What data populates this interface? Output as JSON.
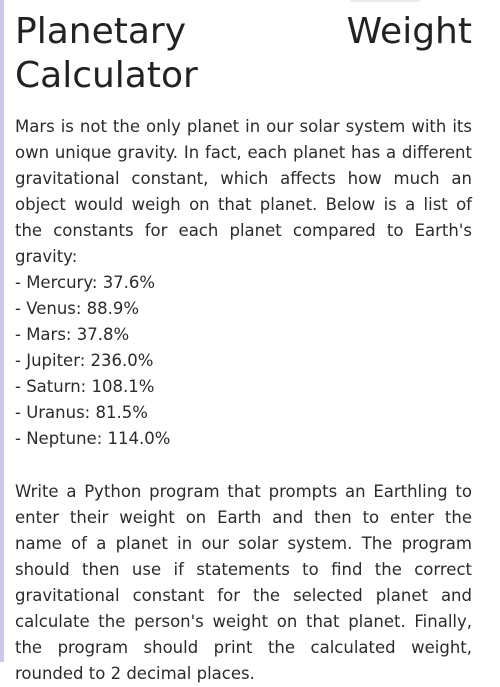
{
  "title": "Planetary Weight Calculator",
  "intro": "Mars is not the only planet in our solar system with its own unique gravity. In fact, each planet has a different gravitational constant, which affects how much an object would weigh on that planet. Below is a list of the constants for each planet compared to Earth's gravity:",
  "planets": [
    "- Mercury: 37.6%",
    "- Venus: 88.9%",
    "- Mars: 37.8%",
    "- Jupiter: 236.0%",
    "- Saturn: 108.1%",
    "- Uranus: 81.5%",
    "- Neptune: 114.0%"
  ],
  "task": "Write a Python program that prompts an Earthling to enter their weight on Earth and then to enter the name of a planet in our solar system. The program should then use if statements to find the correct gravitational constant for the selected planet and calculate the person's weight on that planet. Finally, the program should print the calculated weight, rounded to 2 decimal places.",
  "colors": {
    "text": "#2b2b2b",
    "left_bar": "#cbc8ec",
    "background": "#ffffff"
  }
}
